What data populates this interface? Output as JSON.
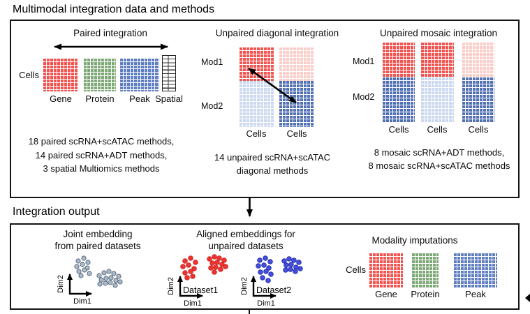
{
  "title": "Multimodal integration data and methods",
  "output_section_title": "Integration output",
  "paired": {
    "title": "Paired integration",
    "cells_label": "Cells",
    "modalities": [
      {
        "label": "Gene",
        "color": "#F15450"
      },
      {
        "label": "Protein",
        "color": "#7FA877"
      },
      {
        "label": "Peak",
        "color": "#6080C2"
      },
      {
        "label": "Spatial",
        "color": "#FFFFFF"
      }
    ],
    "methods": [
      "18 paired scRNA+scATAC methods,",
      "14 paired scRNA+ADT methods,",
      "3 spatial Multiomics methods"
    ]
  },
  "diagonal": {
    "title": "Unpaired diagonal integration",
    "row_labels": [
      "Mod1",
      "Mod2"
    ],
    "column_labels": [
      "Cells",
      "Cells"
    ],
    "methods": [
      "14 unpaired scRNA+scATAC",
      "diagonal methods"
    ]
  },
  "mosaic": {
    "title": "Unpaired mosaic integration",
    "row_labels": [
      "Mod1",
      "Mod2"
    ],
    "column_labels": [
      "Cells",
      "Cells",
      "Cells"
    ],
    "methods": [
      "8 mosaic scRNA+ADT methods,",
      "8 mosaic scRNA+scATAC methods"
    ]
  },
  "outputs": {
    "joint": {
      "title_lines": [
        "Joint embedding",
        "from paired datasets"
      ],
      "x_axis": "Dim1",
      "y_axis": "Dim2"
    },
    "aligned": {
      "title_lines": [
        "Aligned embeddings for",
        "unpaired datasets"
      ],
      "datasets": [
        "Dataset1",
        "Dataset2"
      ],
      "x_axis": "Dim1",
      "y_axis": "Dim2"
    },
    "imputations": {
      "title": "Modality imputations",
      "cells_label": "Cells",
      "modalities": [
        {
          "label": "Gene",
          "color": "#F15450"
        },
        {
          "label": "Protein",
          "color": "#7FA877"
        },
        {
          "label": "Peak",
          "color": "#6080C2"
        }
      ]
    }
  },
  "colors": {
    "red": "#F15450",
    "red_light": "#FACDC9",
    "green": "#7FA877",
    "blue": "#6080C2",
    "blue_dark": "#5271B3",
    "blue_light": "#CBD8EF",
    "gray_dot": "#ABBACB",
    "red_dot": "#EE3431",
    "blue_dot": "#4450DC",
    "line": "#141414"
  },
  "scatter_dots": {
    "joint": [
      [
        37,
        16
      ],
      [
        45,
        12
      ],
      [
        51,
        18
      ],
      [
        35,
        24
      ],
      [
        43,
        21
      ],
      [
        50,
        26
      ],
      [
        38,
        31
      ],
      [
        46,
        29
      ],
      [
        53,
        34
      ],
      [
        41,
        37
      ],
      [
        67,
        37
      ],
      [
        74,
        33
      ],
      [
        81,
        31
      ],
      [
        88,
        34
      ],
      [
        95,
        38
      ],
      [
        70,
        43
      ],
      [
        77,
        41
      ],
      [
        84,
        40
      ],
      [
        91,
        44
      ],
      [
        68,
        49
      ],
      [
        76,
        48
      ],
      [
        83,
        47
      ],
      [
        90,
        51
      ],
      [
        97,
        46
      ]
    ],
    "dataset1": [
      [
        33,
        16
      ],
      [
        41,
        12
      ],
      [
        48,
        18
      ],
      [
        30,
        24
      ],
      [
        38,
        22
      ],
      [
        46,
        27
      ],
      [
        33,
        33
      ],
      [
        41,
        31
      ],
      [
        36,
        40
      ],
      [
        44,
        38
      ],
      [
        68,
        13
      ],
      [
        75,
        10
      ],
      [
        82,
        12
      ],
      [
        89,
        15
      ],
      [
        72,
        19
      ],
      [
        79,
        18
      ],
      [
        86,
        21
      ],
      [
        70,
        26
      ],
      [
        77,
        25
      ],
      [
        84,
        28
      ],
      [
        91,
        24
      ],
      [
        75,
        32
      ]
    ],
    "dataset2": [
      [
        35,
        15
      ],
      [
        43,
        12
      ],
      [
        50,
        17
      ],
      [
        33,
        23
      ],
      [
        41,
        22
      ],
      [
        48,
        26
      ],
      [
        36,
        32
      ],
      [
        44,
        31
      ],
      [
        51,
        35
      ],
      [
        39,
        40
      ],
      [
        47,
        44
      ],
      [
        70,
        16
      ],
      [
        77,
        13
      ],
      [
        84,
        15
      ],
      [
        91,
        18
      ],
      [
        73,
        22
      ],
      [
        80,
        21
      ],
      [
        87,
        25
      ],
      [
        72,
        29
      ],
      [
        79,
        28
      ],
      [
        86,
        31
      ],
      [
        93,
        27
      ]
    ]
  }
}
